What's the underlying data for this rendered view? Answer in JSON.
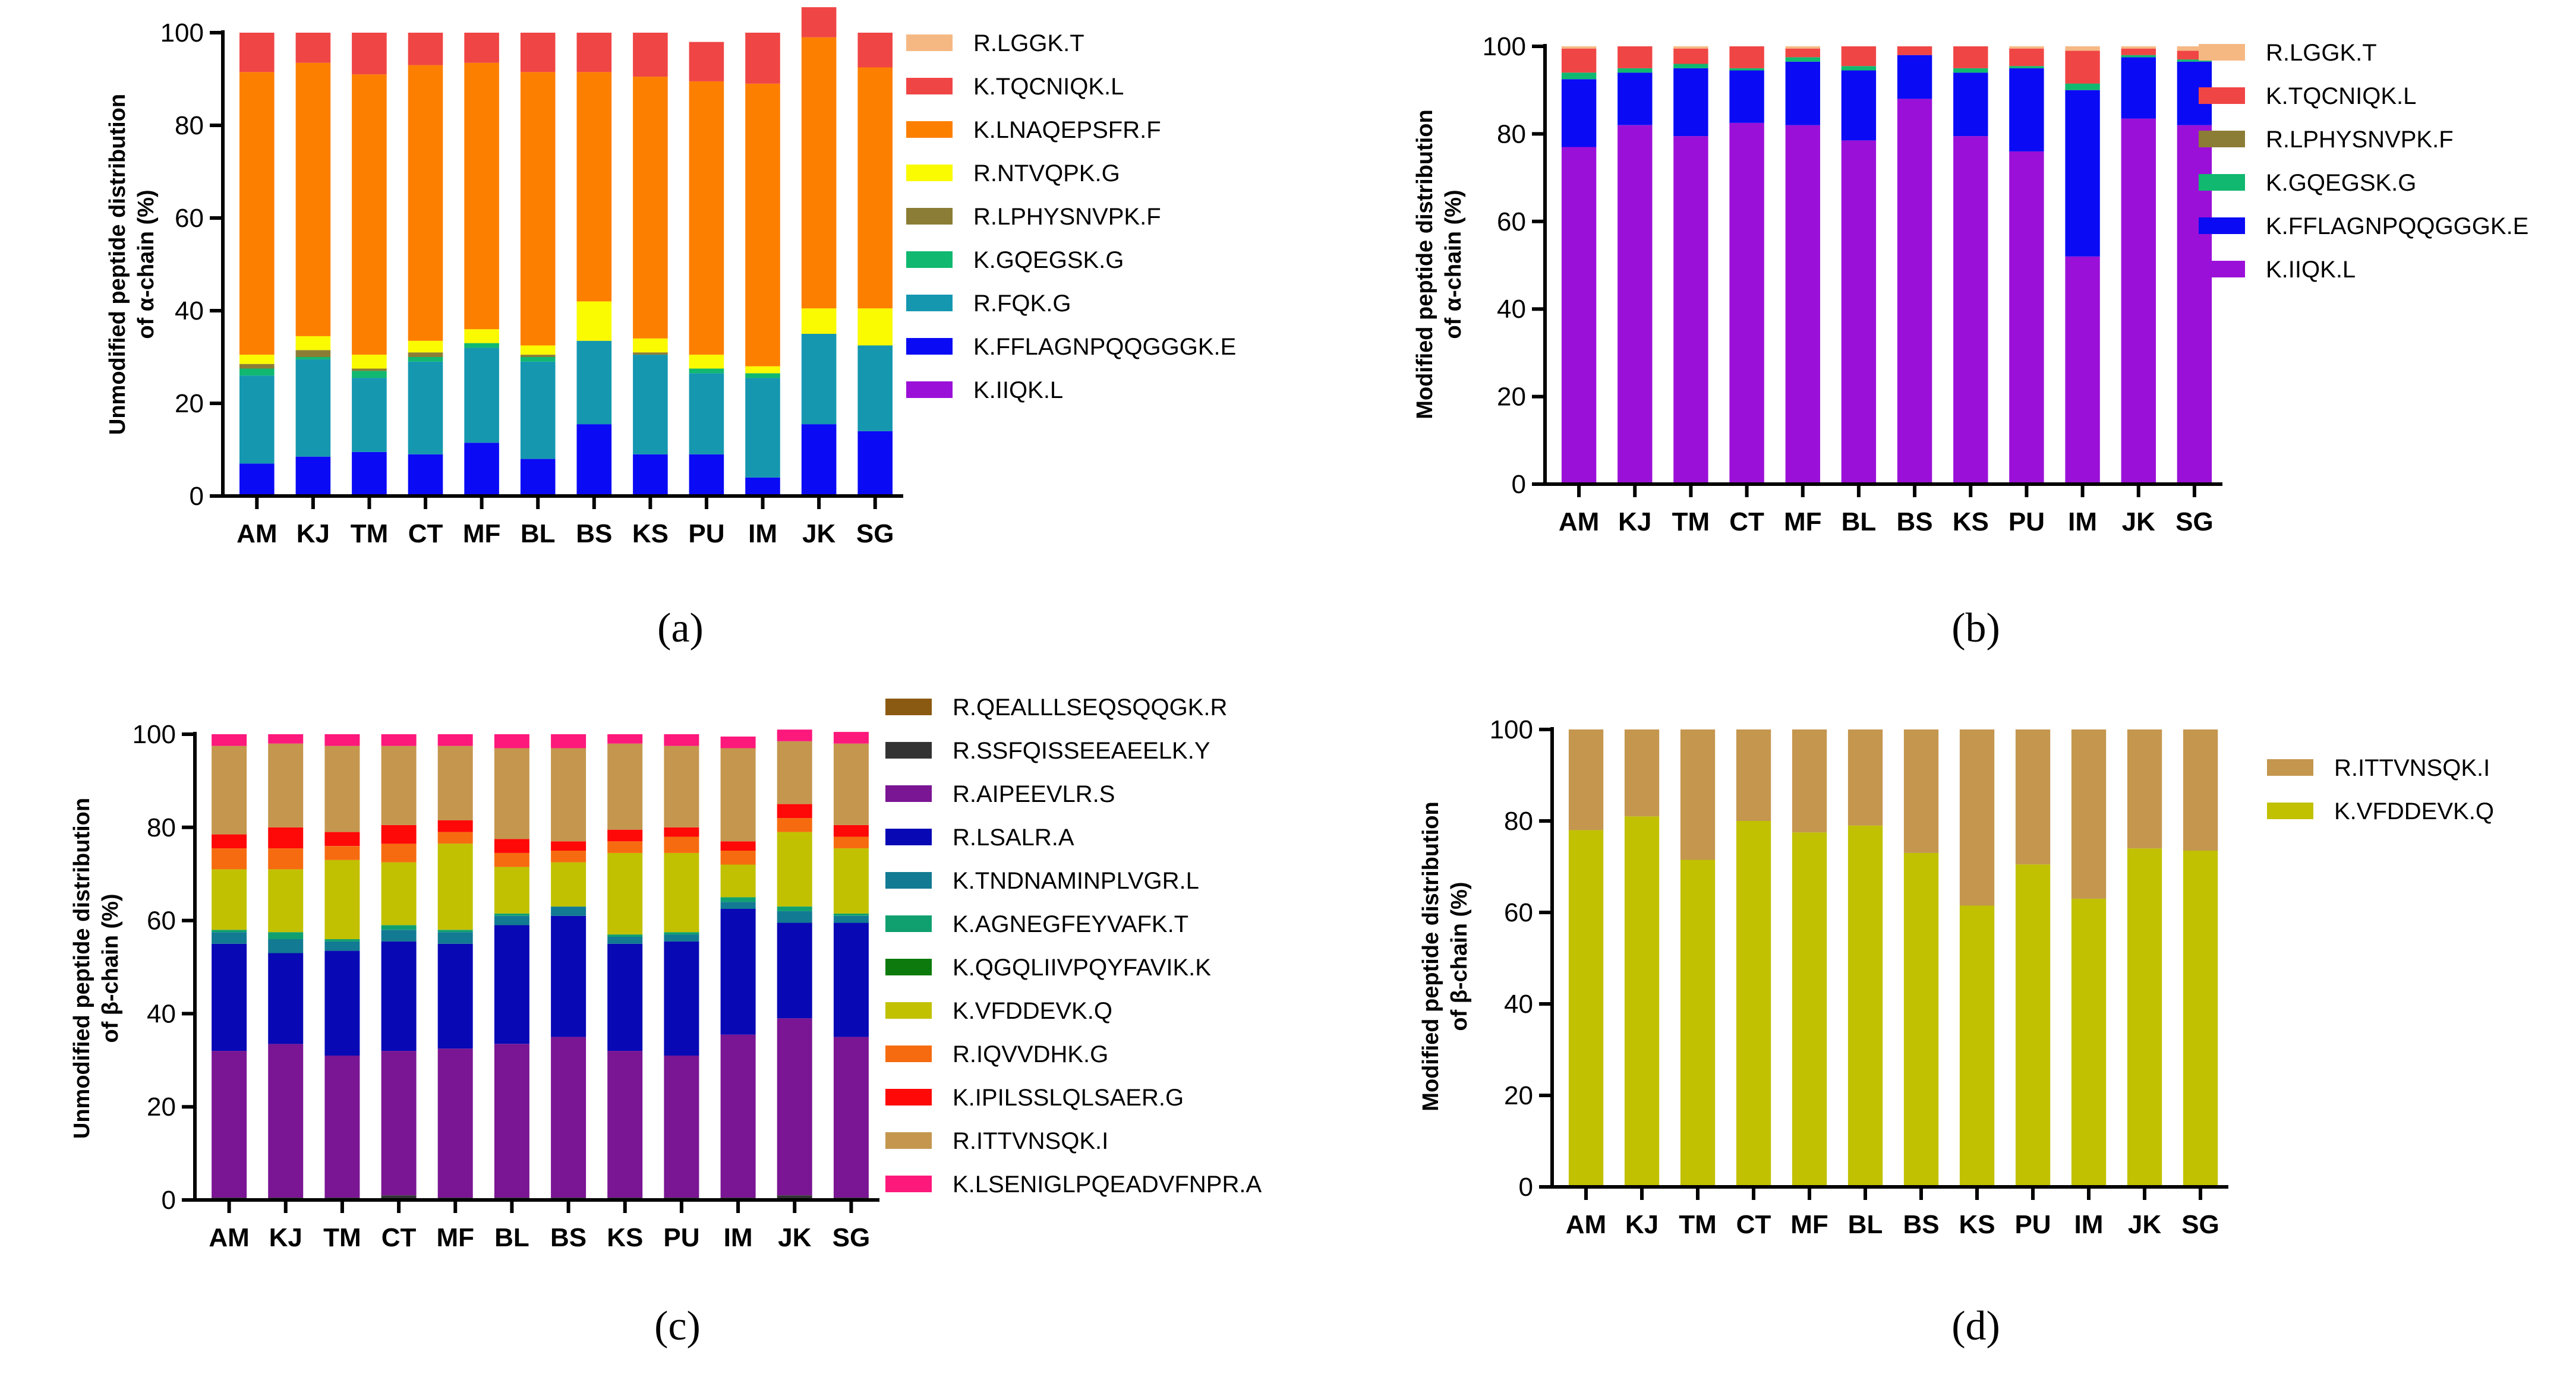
{
  "chart_data": [
    {
      "type": "bar",
      "stacked": true,
      "panel_label": "(a)",
      "ylabel_lines": [
        "Unmodified peptide distribution",
        "of α-chain (%)"
      ],
      "ylim": [
        0,
        100
      ],
      "yticks": [
        0,
        20,
        40,
        60,
        80,
        100
      ],
      "categories": [
        "AM",
        "KJ",
        "TM",
        "CT",
        "MF",
        "BL",
        "BS",
        "KS",
        "PU",
        "IM",
        "JK",
        "SG"
      ],
      "series": [
        {
          "name": "K.IIQK.L",
          "color": "#9b10d8",
          "values": [
            0,
            0,
            0,
            0,
            0,
            0,
            0,
            0,
            0,
            0,
            0,
            0
          ]
        },
        {
          "name": "K.FFLAGNPQQGGGK.E",
          "color": "#0a0af5",
          "values": [
            7,
            8.5,
            9.5,
            9,
            11.5,
            8,
            15.5,
            9,
            9,
            4,
            15.5,
            14
          ]
        },
        {
          "name": "R.FQK.G",
          "color": "#1597b0",
          "values": [
            19,
            21,
            16,
            20,
            20.5,
            21,
            18,
            21.5,
            17.5,
            21.5,
            19.5,
            18.5
          ]
        },
        {
          "name": "K.GQEGSK.G",
          "color": "#10b870",
          "values": [
            1.5,
            0.5,
            1.5,
            1,
            1,
            1,
            0,
            0,
            1,
            1,
            0,
            0
          ]
        },
        {
          "name": "R.LPHYSNVPK.F",
          "color": "#8b7d35",
          "values": [
            1,
            1.5,
            0.5,
            1,
            0,
            0.5,
            0,
            0.5,
            0,
            0,
            0,
            0
          ]
        },
        {
          "name": "R.NTVQPK.G",
          "color": "#fafa00",
          "values": [
            2,
            3,
            3,
            2.5,
            3,
            2,
            8.5,
            3,
            3,
            1.5,
            5.5,
            8
          ]
        },
        {
          "name": "K.LNAQEPSFR.F",
          "color": "#fd7f00",
          "values": [
            61,
            59,
            60.5,
            59.5,
            57.5,
            59,
            49.5,
            56.5,
            59,
            61,
            58.5,
            52
          ]
        },
        {
          "name": "K.TQCNIQK.L",
          "color": "#f04545",
          "values": [
            8.5,
            6.5,
            9,
            7,
            6.5,
            8.5,
            8.5,
            9.5,
            8.5,
            11,
            6.5,
            7.5
          ]
        },
        {
          "name": "R.LGGK.T",
          "color": "#f6b883",
          "values": [
            0,
            0,
            0,
            0,
            0,
            0,
            0,
            0,
            0,
            0,
            0,
            0
          ]
        }
      ],
      "legend_order": [
        "R.LGGK.T",
        "K.TQCNIQK.L",
        "K.LNAQEPSFR.F",
        "R.NTVQPK.G",
        "R.LPHYSNVPK.F",
        "K.GQEGSK.G",
        "R.FQK.G",
        "K.FFLAGNPQQGGGK.E",
        "K.IIQK.L"
      ]
    },
    {
      "type": "bar",
      "stacked": true,
      "panel_label": "(b)",
      "ylabel_lines": [
        "Modified peptide distribution",
        "of α-chain (%)"
      ],
      "ylim": [
        0,
        100
      ],
      "yticks": [
        0,
        20,
        40,
        60,
        80,
        100
      ],
      "categories": [
        "AM",
        "KJ",
        "TM",
        "CT",
        "MF",
        "BL",
        "BS",
        "KS",
        "PU",
        "IM",
        "JK",
        "SG"
      ],
      "series": [
        {
          "name": "K.IIQK.L",
          "color": "#9b10d8",
          "values": [
            77,
            82,
            79.5,
            82.5,
            82,
            78.5,
            88,
            79.5,
            76,
            52,
            83.5,
            82
          ]
        },
        {
          "name": "K.FFLAGNPQQGGGK.E",
          "color": "#0a0af5",
          "values": [
            15.5,
            12,
            15.5,
            12,
            14.5,
            16,
            10,
            14.5,
            19,
            38,
            14,
            14.5
          ]
        },
        {
          "name": "K.GQEGSK.G",
          "color": "#10b870",
          "values": [
            1.5,
            1,
            1,
            0.5,
            1,
            1,
            0,
            1,
            0.5,
            1.5,
            0.5,
            0.5
          ]
        },
        {
          "name": "R.LPHYSNVPK.F",
          "color": "#8b7d35",
          "values": [
            0,
            0,
            0,
            0,
            0,
            0,
            0,
            0,
            0,
            0,
            0,
            0
          ]
        },
        {
          "name": "K.TQCNIQK.L",
          "color": "#f04545",
          "values": [
            5.5,
            5,
            3.5,
            5,
            2,
            4.5,
            2,
            5,
            4,
            7.5,
            1.5,
            2
          ]
        },
        {
          "name": "R.LGGK.T",
          "color": "#f6b883",
          "values": [
            0.5,
            0,
            0.5,
            0,
            0.5,
            0,
            0,
            0,
            0.5,
            1,
            0.5,
            1
          ]
        }
      ],
      "legend_order": [
        "R.LGGK.T",
        "K.TQCNIQK.L",
        "R.LPHYSNVPK.F",
        "K.GQEGSK.G",
        "K.FFLAGNPQQGGGK.E",
        "K.IIQK.L"
      ]
    },
    {
      "type": "bar",
      "stacked": true,
      "panel_label": "(c)",
      "ylabel_lines": [
        "Unmodified peptide distribution",
        "of β-chain (%)"
      ],
      "ylim": [
        0,
        100
      ],
      "yticks": [
        0,
        20,
        40,
        60,
        80,
        100
      ],
      "categories": [
        "AM",
        "KJ",
        "TM",
        "CT",
        "MF",
        "BL",
        "BS",
        "KS",
        "PU",
        "IM",
        "JK",
        "SG"
      ],
      "series": [
        {
          "name": "R.QEALLLSEQSQQGK.R",
          "color": "#8b5a12",
          "values": [
            0,
            0,
            0,
            0,
            0,
            0,
            0,
            0,
            0,
            0,
            0,
            0
          ]
        },
        {
          "name": "R.SSFQISSEEAEELK.Y",
          "color": "#333333",
          "values": [
            0.5,
            0.5,
            0.5,
            1,
            0.5,
            0.5,
            0.5,
            0.5,
            0.5,
            0.5,
            1,
            0.5
          ]
        },
        {
          "name": "R.AIPEEVLR.S",
          "color": "#7a1593",
          "values": [
            31.5,
            33,
            30.5,
            31,
            32,
            33,
            34.5,
            31.5,
            30.5,
            35,
            38,
            34.5
          ]
        },
        {
          "name": "R.LSALR.A",
          "color": "#0808b5",
          "values": [
            23,
            19.5,
            22.5,
            23.5,
            22.5,
            25.5,
            26,
            23,
            24.5,
            27,
            20.5,
            24.5
          ]
        },
        {
          "name": "K.TNDNAMINPLVGR.L",
          "color": "#127a92",
          "values": [
            2.5,
            3,
            2,
            2.5,
            2.5,
            2,
            2,
            1.5,
            1.5,
            1.5,
            2.5,
            1.5
          ]
        },
        {
          "name": "K.AGNEGFEYVAFK.T",
          "color": "#10a070",
          "values": [
            0.5,
            1.5,
            0.5,
            1,
            0.5,
            0.5,
            0,
            0.5,
            0.5,
            1,
            1,
            0.5
          ]
        },
        {
          "name": "K.QGQLIIVPQYFAVIK.K",
          "color": "#0c7a0c",
          "values": [
            0,
            0,
            0,
            0,
            0,
            0,
            0,
            0,
            0,
            0,
            0,
            0
          ]
        },
        {
          "name": "K.VFDDEVK.Q",
          "color": "#c1c101",
          "values": [
            13,
            13.5,
            17,
            13.5,
            18.5,
            10,
            9.5,
            17.5,
            17,
            7,
            16,
            14
          ]
        },
        {
          "name": "R.IQVVDHK.G",
          "color": "#f66b10",
          "values": [
            4.5,
            4.5,
            3,
            4,
            2.5,
            3,
            2.5,
            2.5,
            3.5,
            3,
            3,
            2.5
          ]
        },
        {
          "name": "K.IPILSSLQLSAER.G",
          "color": "#fe0808",
          "values": [
            3,
            4.5,
            3,
            4,
            2.5,
            3,
            2,
            2.5,
            2,
            2,
            3,
            2.5
          ]
        },
        {
          "name": "R.ITTVNSQK.I",
          "color": "#c4964e",
          "values": [
            19,
            18,
            18.5,
            17,
            16,
            19.5,
            20,
            18.5,
            17.5,
            20,
            13.5,
            17.5
          ]
        },
        {
          "name": "K.LSENIGLPQEADVFNPR.A",
          "color": "#fd187c",
          "values": [
            2.5,
            2,
            2.5,
            2.5,
            2.5,
            3,
            3,
            2,
            2.5,
            2.5,
            2.5,
            2.5
          ]
        }
      ],
      "legend_order": [
        "R.QEALLLSEQSQQGK.R",
        "R.SSFQISSEEAEELK.Y",
        "R.AIPEEVLR.S",
        "R.LSALR.A",
        "K.TNDNAMINPLVGR.L",
        "K.AGNEGFEYVAFK.T",
        "K.QGQLIIVPQYFAVIK.K",
        "K.VFDDEVK.Q",
        "R.IQVVDHK.G",
        "K.IPILSSLQLSAER.G",
        "R.ITTVNSQK.I",
        "K.LSENIGLPQEADVFNPR.A"
      ]
    },
    {
      "type": "bar",
      "stacked": true,
      "panel_label": "(d)",
      "ylabel_lines": [
        "Modified peptide distribution",
        "of β-chain (%)"
      ],
      "ylim": [
        0,
        100
      ],
      "yticks": [
        0,
        20,
        40,
        60,
        80,
        100
      ],
      "categories": [
        "AM",
        "KJ",
        "TM",
        "CT",
        "MF",
        "BL",
        "BS",
        "KS",
        "PU",
        "IM",
        "JK",
        "SG"
      ],
      "series": [
        {
          "name": "K.VFDDEVK.Q",
          "color": "#c1c101",
          "values": [
            78,
            81,
            71.5,
            80,
            77.5,
            79,
            73,
            61.5,
            70.5,
            63,
            74,
            73.5
          ]
        },
        {
          "name": "R.ITTVNSQK.I",
          "color": "#c4964e",
          "values": [
            22,
            19,
            28.5,
            20,
            22.5,
            21,
            27,
            38.5,
            29.5,
            37,
            26,
            26.5
          ]
        }
      ],
      "legend_order": [
        "R.ITTVNSQK.I",
        "K.VFDDEVK.Q"
      ]
    }
  ]
}
